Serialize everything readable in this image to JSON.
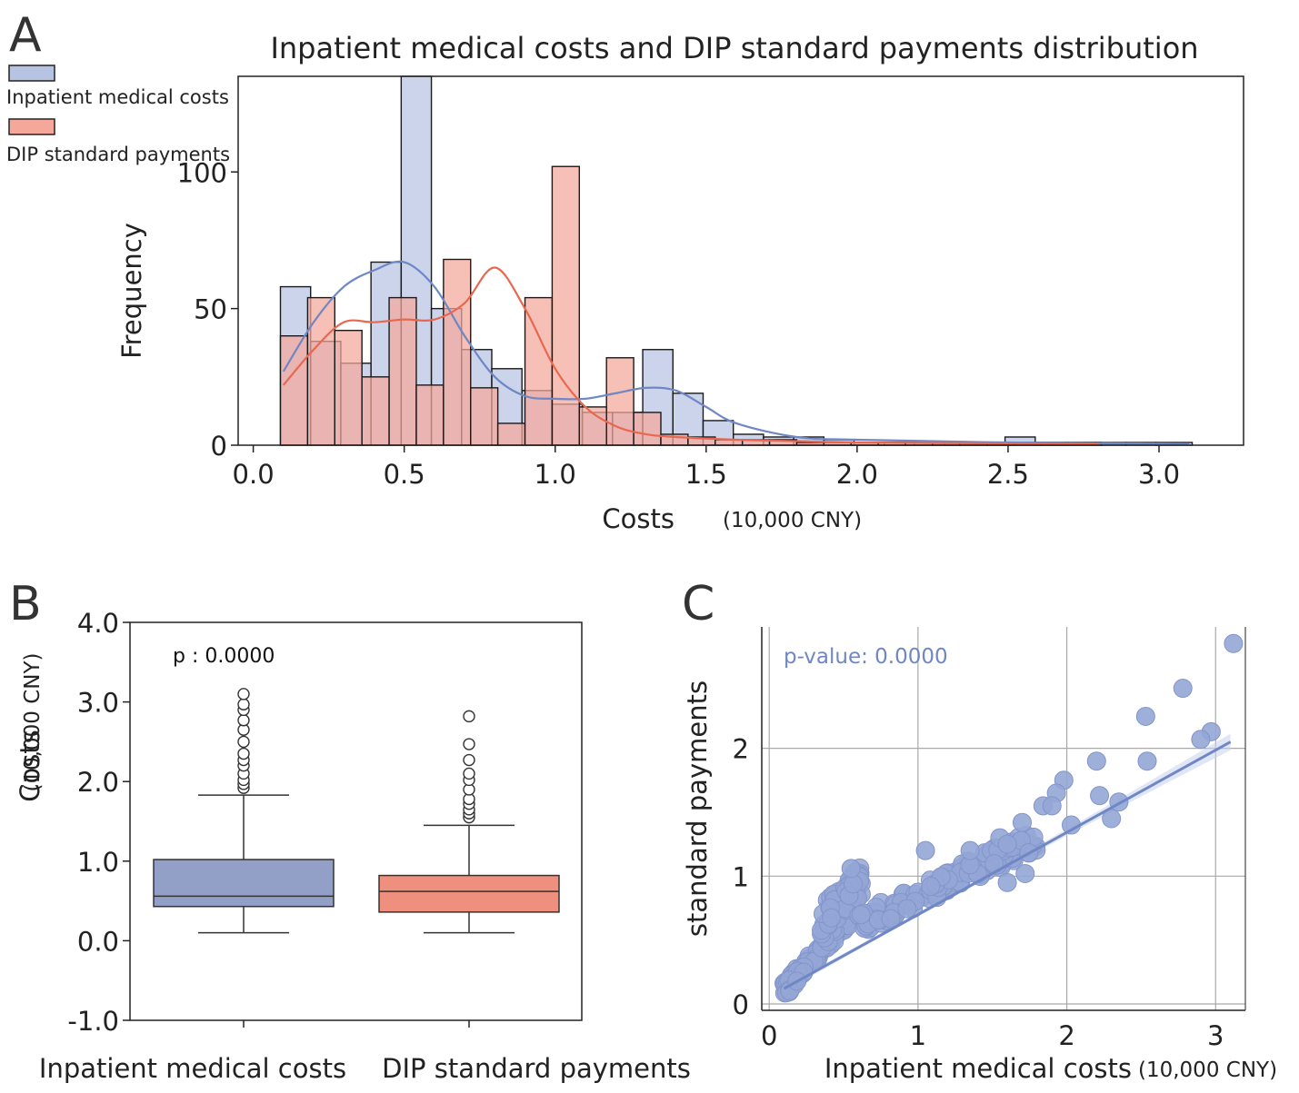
{
  "colors": {
    "blue": "#b7c3e3",
    "blue_line": "#6f87c4",
    "red": "#f4a89a",
    "red_line": "#e8684f",
    "box_blue": "#929fc7",
    "box_red": "#ef907e",
    "scatter": "#94a6d6",
    "grid": "#a9a9a9"
  },
  "chart_data": [
    {
      "id": "A",
      "panel_letter": "A",
      "type": "bar",
      "subtype": "histogram-with-kde",
      "title": "Inpatient medical costs and DIP standard payments distribution",
      "xlabel": "Costs",
      "xlabel_unit": "(10,000 CNY)",
      "ylabel": "Frequency",
      "xlim": [
        -0.05,
        3.28
      ],
      "ylim": [
        0,
        135
      ],
      "xticks": [
        "0.0",
        "0.5",
        "1.0",
        "1.5",
        "2.0",
        "2.5",
        "3.0"
      ],
      "yticks": [
        "0",
        "50",
        "100"
      ],
      "legend_position": "top-left",
      "series": [
        {
          "name": "Inpatient medical costs",
          "bin_edges": [
            0.09,
            0.19,
            0.29,
            0.39,
            0.49,
            0.59,
            0.69,
            0.79,
            0.89,
            0.99,
            1.09,
            1.19,
            1.29,
            1.39,
            1.49,
            1.59,
            1.69,
            1.79,
            1.89,
            1.99,
            2.09,
            2.19,
            2.29,
            2.39,
            2.49,
            2.59,
            2.69,
            2.79,
            2.89,
            2.99,
            3.11
          ],
          "counts": [
            58,
            38,
            30,
            67,
            135,
            50,
            35,
            28,
            20,
            15,
            12,
            12,
            35,
            19,
            9,
            4,
            3,
            3,
            2,
            1,
            1,
            1,
            1,
            1,
            3,
            1,
            1,
            1,
            1,
            1
          ],
          "kde": [
            [
              0.1,
              27
            ],
            [
              0.2,
              45
            ],
            [
              0.3,
              58
            ],
            [
              0.4,
              64
            ],
            [
              0.5,
              67
            ],
            [
              0.6,
              58
            ],
            [
              0.7,
              40
            ],
            [
              0.8,
              25
            ],
            [
              0.9,
              18
            ],
            [
              1.0,
              17
            ],
            [
              1.1,
              17
            ],
            [
              1.2,
              19
            ],
            [
              1.3,
              21
            ],
            [
              1.4,
              20
            ],
            [
              1.5,
              14
            ],
            [
              1.6,
              8
            ],
            [
              1.8,
              3
            ],
            [
              2.0,
              2
            ],
            [
              2.5,
              1
            ],
            [
              3.1,
              0.5
            ]
          ]
        },
        {
          "name": "DIP standard payments",
          "bin_edges": [
            0.09,
            0.18,
            0.27,
            0.36,
            0.45,
            0.54,
            0.63,
            0.72,
            0.81,
            0.9,
            0.99,
            1.08,
            1.17,
            1.26,
            1.35,
            1.44,
            1.53,
            1.62,
            1.71,
            1.8,
            1.89,
            1.98,
            2.07,
            2.16,
            2.25,
            2.34,
            2.43,
            2.52,
            2.61,
            2.7,
            2.81
          ],
          "counts": [
            40,
            54,
            42,
            25,
            54,
            22,
            68,
            21,
            8,
            54,
            102,
            14,
            32,
            12,
            4,
            3,
            2,
            2,
            2,
            1,
            1,
            1,
            1,
            1,
            1,
            1,
            1,
            1,
            1,
            1
          ],
          "kde": [
            [
              0.1,
              22
            ],
            [
              0.2,
              35
            ],
            [
              0.3,
              45
            ],
            [
              0.4,
              45
            ],
            [
              0.5,
              46
            ],
            [
              0.6,
              46
            ],
            [
              0.7,
              52
            ],
            [
              0.8,
              65
            ],
            [
              0.9,
              50
            ],
            [
              1.0,
              28
            ],
            [
              1.1,
              14
            ],
            [
              1.2,
              7
            ],
            [
              1.3,
              4
            ],
            [
              1.4,
              3
            ],
            [
              1.6,
              2
            ],
            [
              1.8,
              1.5
            ],
            [
              2.0,
              1
            ],
            [
              2.4,
              0.7
            ],
            [
              2.8,
              0.5
            ]
          ]
        }
      ]
    },
    {
      "id": "B",
      "panel_letter": "B",
      "type": "box",
      "ylabel": "Costs",
      "ylabel_unit": "(10,000 CNY)",
      "ylim": [
        -1.0,
        4.0
      ],
      "yticks": [
        "-1.0",
        "0.0",
        "1.0",
        "2.0",
        "3.0",
        "4.0"
      ],
      "annotation": "p : 0.0000",
      "boxes": [
        {
          "name": "Inpatient medical costs",
          "whisker_low": 0.1,
          "q1": 0.43,
          "median": 0.56,
          "q3": 1.02,
          "whisker_high": 1.83,
          "outliers": [
            1.92,
            1.97,
            2.02,
            2.1,
            2.2,
            2.27,
            2.35,
            2.5,
            2.65,
            2.77,
            2.9,
            2.97,
            3.1
          ]
        },
        {
          "name": "DIP standard payments",
          "whisker_low": 0.1,
          "q1": 0.36,
          "median": 0.62,
          "q3": 0.82,
          "whisker_high": 1.45,
          "outliers": [
            1.55,
            1.6,
            1.65,
            1.72,
            1.78,
            1.9,
            2.02,
            2.1,
            2.27,
            2.47,
            2.82
          ]
        }
      ]
    },
    {
      "id": "C",
      "panel_letter": "C",
      "type": "scatter",
      "xlabel": "Inpatient medical costs",
      "xlabel_unit": "(10,000 CNY)",
      "ylabel": "standard payments",
      "xlim": [
        -0.05,
        3.2
      ],
      "ylim": [
        -0.05,
        2.95
      ],
      "xticks": [
        "0",
        "1",
        "2",
        "3"
      ],
      "yticks": [
        "0",
        "1",
        "2"
      ],
      "grid": true,
      "annotation": "p-value: 0.0000",
      "regression": {
        "x": [
          0.1,
          3.1
        ],
        "y": [
          0.12,
          2.05
        ]
      },
      "clusters": [
        {
          "x_min": 0.1,
          "x_max": 0.55,
          "slope": 1.3,
          "intercept": -0.02,
          "spread": 0.06,
          "count": 110
        },
        {
          "x_min": 0.35,
          "x_max": 0.62,
          "slope": 1.1,
          "intercept": 0.28,
          "spread": 0.12,
          "count": 70
        },
        {
          "x_min": 0.6,
          "x_max": 1.8,
          "slope": 0.55,
          "intercept": 0.3,
          "spread": 0.09,
          "count": 140
        }
      ],
      "points": [
        {
          "x": 3.12,
          "y": 2.82
        },
        {
          "x": 2.78,
          "y": 2.47
        },
        {
          "x": 2.53,
          "y": 2.25
        },
        {
          "x": 2.97,
          "y": 2.13
        },
        {
          "x": 2.9,
          "y": 2.07
        },
        {
          "x": 2.54,
          "y": 1.9
        },
        {
          "x": 2.2,
          "y": 1.9
        },
        {
          "x": 1.98,
          "y": 1.75
        },
        {
          "x": 1.93,
          "y": 1.65
        },
        {
          "x": 1.84,
          "y": 1.55
        },
        {
          "x": 1.9,
          "y": 1.55
        },
        {
          "x": 2.35,
          "y": 1.58
        },
        {
          "x": 2.22,
          "y": 1.63
        },
        {
          "x": 2.3,
          "y": 1.45
        },
        {
          "x": 1.7,
          "y": 1.42
        },
        {
          "x": 2.03,
          "y": 1.4
        },
        {
          "x": 1.55,
          "y": 1.3
        },
        {
          "x": 1.35,
          "y": 1.2
        },
        {
          "x": 1.05,
          "y": 1.2
        },
        {
          "x": 1.6,
          "y": 1.25
        },
        {
          "x": 1.72,
          "y": 1.02
        },
        {
          "x": 1.6,
          "y": 0.95
        },
        {
          "x": 0.55,
          "y": 1.06
        }
      ]
    }
  ]
}
